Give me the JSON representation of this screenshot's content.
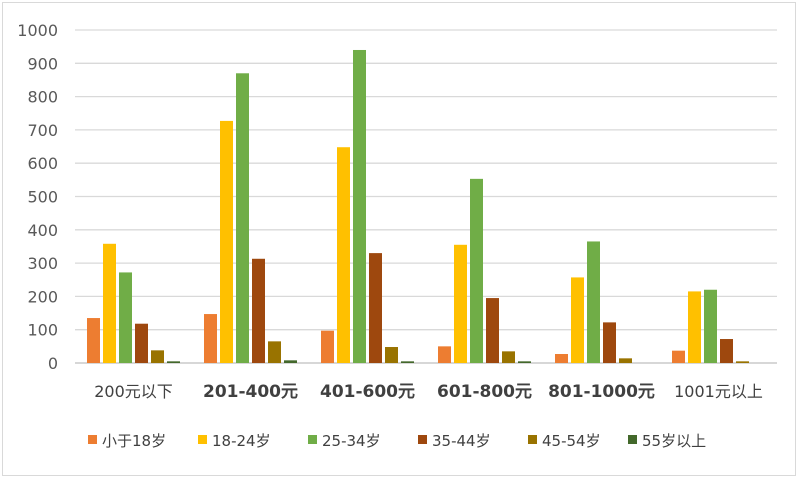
{
  "chart_data": {
    "type": "bar",
    "title": "",
    "xlabel": "",
    "ylabel": "",
    "ylim": [
      0,
      1000
    ],
    "yticks": [
      0,
      100,
      200,
      300,
      400,
      500,
      600,
      700,
      800,
      900,
      1000
    ],
    "grid": true,
    "legend_position": "bottom",
    "categories": [
      "200元以下",
      "201-400元",
      "401-600元",
      "601-800元",
      "801-1000元",
      "1001元以上"
    ],
    "series": [
      {
        "name": "小于18岁",
        "color": "#ED7D31",
        "values": [
          135,
          147,
          97,
          50,
          27,
          37
        ]
      },
      {
        "name": "18-24岁",
        "color": "#FFC000",
        "values": [
          358,
          727,
          648,
          355,
          257,
          215
        ]
      },
      {
        "name": "25-34岁",
        "color": "#70AD47",
        "values": [
          272,
          870,
          940,
          553,
          365,
          220
        ]
      },
      {
        "name": "35-44岁",
        "color": "#9E480E",
        "values": [
          118,
          313,
          330,
          195,
          122,
          72
        ]
      },
      {
        "name": "45-54岁",
        "color": "#997300",
        "values": [
          38,
          65,
          48,
          35,
          14,
          5
        ]
      },
      {
        "name": "55岁以上",
        "color": "#43682B",
        "values": [
          5,
          8,
          5,
          5,
          0,
          0
        ]
      }
    ]
  }
}
